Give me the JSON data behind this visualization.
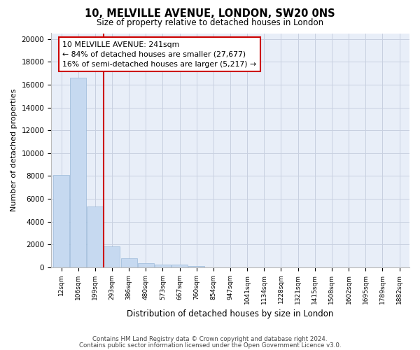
{
  "title": "10, MELVILLE AVENUE, LONDON, SW20 0NS",
  "subtitle": "Size of property relative to detached houses in London",
  "xlabel": "Distribution of detached houses by size in London",
  "ylabel": "Number of detached properties",
  "categories": [
    "12sqm",
    "106sqm",
    "199sqm",
    "293sqm",
    "386sqm",
    "480sqm",
    "573sqm",
    "667sqm",
    "760sqm",
    "854sqm",
    "947sqm",
    "1041sqm",
    "1134sqm",
    "1228sqm",
    "1321sqm",
    "1415sqm",
    "1508sqm",
    "1602sqm",
    "1695sqm",
    "1789sqm",
    "1882sqm"
  ],
  "values": [
    8100,
    16600,
    5300,
    1800,
    800,
    350,
    250,
    250,
    100,
    0,
    0,
    0,
    0,
    0,
    0,
    0,
    0,
    0,
    0,
    0,
    0
  ],
  "bar_color": "#c6d9f0",
  "bar_edge_color": "#9ab8d8",
  "property_line_x": 2.5,
  "property_label": "10 MELVILLE AVENUE: 241sqm",
  "annotation_line1": "← 84% of detached houses are smaller (27,677)",
  "annotation_line2": "16% of semi-detached houses are larger (5,217) →",
  "annotation_box_color": "#cc0000",
  "ylim": [
    0,
    20500
  ],
  "yticks": [
    0,
    2000,
    4000,
    6000,
    8000,
    10000,
    12000,
    14000,
    16000,
    18000,
    20000
  ],
  "grid_color": "#c8d0e0",
  "background_color": "#e8eef8",
  "footnote1": "Contains HM Land Registry data © Crown copyright and database right 2024.",
  "footnote2": "Contains public sector information licensed under the Open Government Licence v3.0."
}
